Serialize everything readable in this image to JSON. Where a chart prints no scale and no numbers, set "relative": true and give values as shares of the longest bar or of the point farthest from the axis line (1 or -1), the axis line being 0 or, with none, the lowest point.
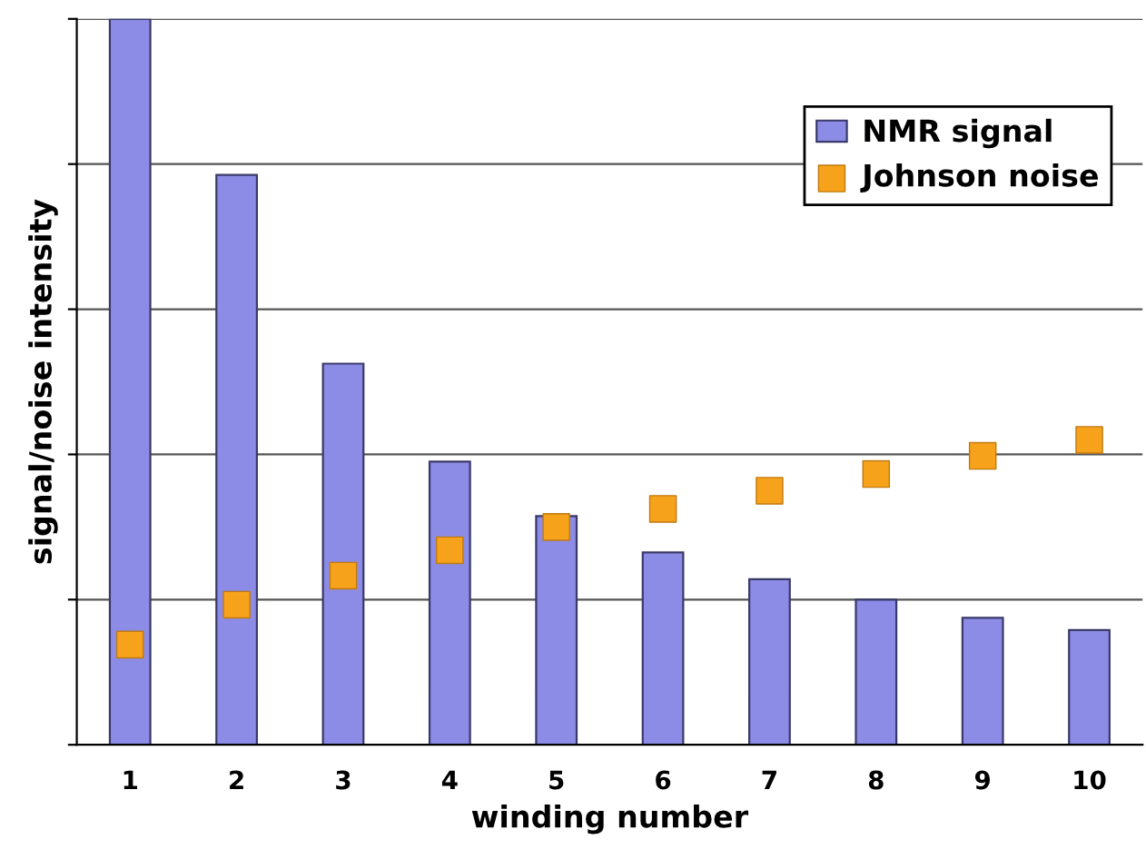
{
  "chart_data": {
    "type": "bar",
    "relative": true,
    "xlabel": "winding number",
    "ylabel": "signal/noise intensity",
    "categories": [
      "1",
      "2",
      "3",
      "4",
      "5",
      "6",
      "7",
      "8",
      "9",
      "10"
    ],
    "series": [
      {
        "name": "NMR signal",
        "color": "#8c8ce6",
        "values": [
          1.0,
          0.785,
          0.525,
          0.39,
          0.315,
          0.265,
          0.228,
          0.2,
          0.175,
          0.158
        ]
      },
      {
        "name": "Johnson noise",
        "type": "scatter",
        "color": "#f7a21b",
        "values": [
          0.138,
          0.193,
          0.233,
          0.268,
          0.3,
          0.325,
          0.35,
          0.373,
          0.398,
          0.42
        ]
      }
    ],
    "marker": "square",
    "grid": "y",
    "legend": "top right"
  }
}
